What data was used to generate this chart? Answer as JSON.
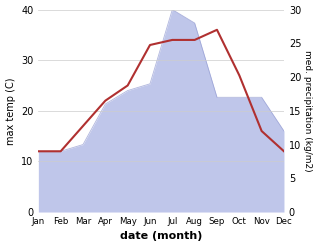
{
  "months": [
    "Jan",
    "Feb",
    "Mar",
    "Apr",
    "May",
    "Jun",
    "Jul",
    "Aug",
    "Sep",
    "Oct",
    "Nov",
    "Dec"
  ],
  "temp": [
    12,
    12,
    17,
    22,
    25,
    33,
    34,
    34,
    36,
    27,
    16,
    12
  ],
  "precip": [
    9,
    9,
    10,
    16,
    18,
    19,
    30,
    28,
    17,
    17,
    17,
    12
  ],
  "temp_color": "#b03030",
  "precip_fill_color": "#b8c0e8",
  "precip_line_color": "#9098d0",
  "left_ylabel": "max temp (C)",
  "right_ylabel": "med. precipitation (kg/m2)",
  "xlabel": "date (month)",
  "left_ylim": [
    0,
    40
  ],
  "right_ylim": [
    0,
    30
  ],
  "bg_color": "#ffffff"
}
